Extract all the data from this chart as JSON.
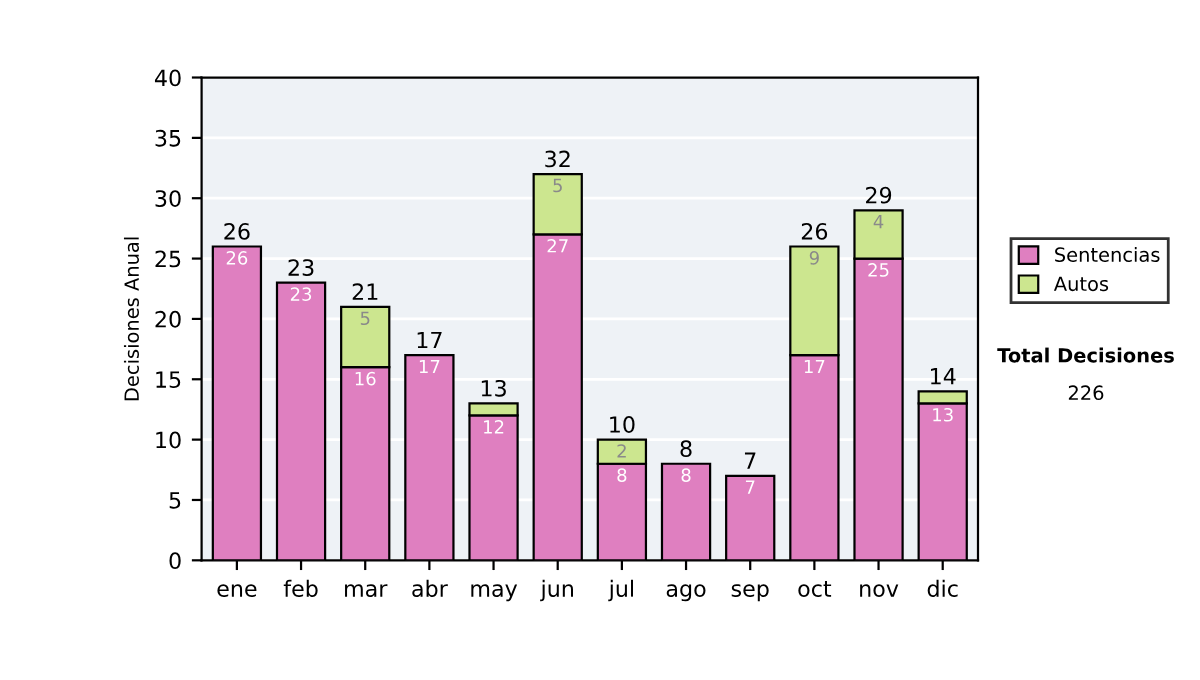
{
  "chart_data": {
    "type": "bar",
    "stacked": true,
    "ylabel": "Decisiones Anual",
    "categories": [
      "ene",
      "feb",
      "mar",
      "abr",
      "may",
      "jun",
      "jul",
      "ago",
      "sep",
      "oct",
      "nov",
      "dic"
    ],
    "series": [
      {
        "name": "Sentencias",
        "color": "#df7fc0",
        "values": [
          26,
          23,
          16,
          17,
          12,
          27,
          8,
          8,
          7,
          17,
          25,
          13
        ],
        "value_labels": [
          "26",
          "23",
          "16",
          "17",
          "12",
          "27",
          "8",
          "8",
          "7",
          "17",
          "25",
          "13"
        ]
      },
      {
        "name": "Autos",
        "color": "#cce68f",
        "values": [
          null,
          null,
          5,
          null,
          1,
          5,
          2,
          null,
          null,
          9,
          4,
          1
        ],
        "value_labels": [
          null,
          null,
          "5",
          null,
          null,
          "5",
          "2",
          null,
          null,
          "9",
          "4",
          null
        ]
      }
    ],
    "totals": [
      "26",
      "23",
      "21",
      "17",
      "13",
      "32",
      "10",
      "8",
      "7",
      "26",
      "29",
      "14"
    ],
    "ylim": [
      0,
      40
    ],
    "yticks": [
      0,
      5,
      10,
      15,
      20,
      25,
      30,
      35,
      40
    ],
    "grid": "y",
    "legend": "right",
    "annotations": [
      "Total Decisiones",
      "226"
    ]
  }
}
